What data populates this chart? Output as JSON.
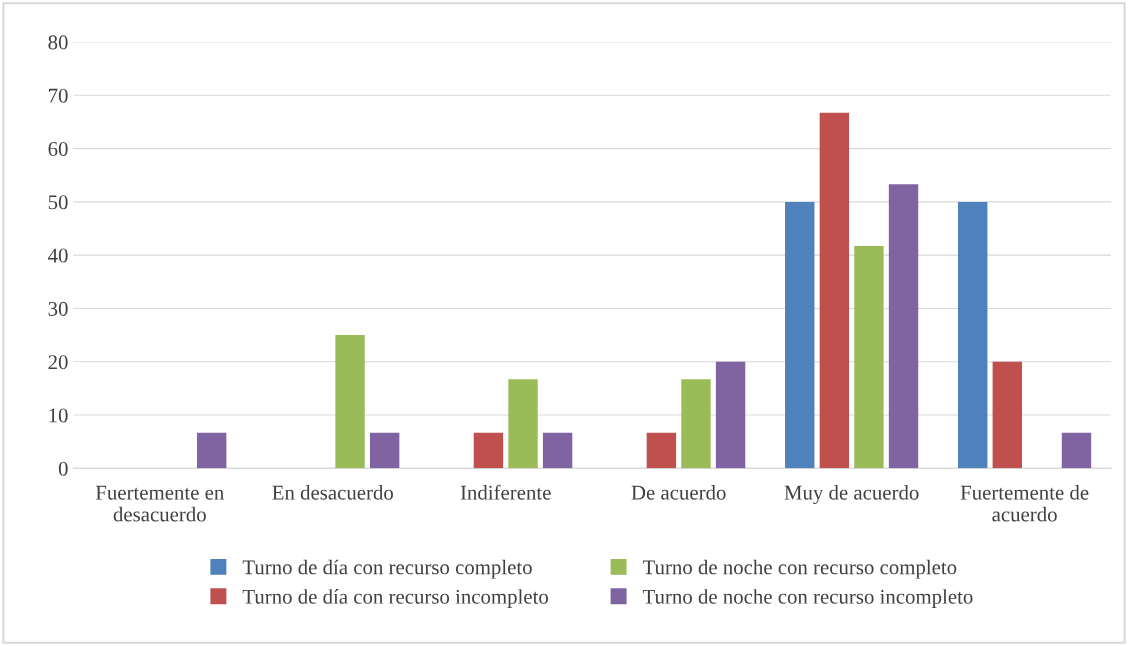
{
  "chart_data": {
    "type": "bar",
    "categories": [
      "Fuertemente en\ndesacuerdo",
      "En desacuerdo",
      "Indiferente",
      "De acuerdo",
      "Muy de acuerdo",
      "Fuertemente de\nacuerdo"
    ],
    "series": [
      {
        "name": "Turno de día con recurso completo",
        "color": "#4f81bd",
        "values": [
          0,
          0,
          0,
          0,
          50,
          50
        ]
      },
      {
        "name": "Turno de día con recurso incompleto",
        "color": "#c0504d",
        "values": [
          0,
          0,
          6.7,
          6.7,
          66.7,
          20
        ]
      },
      {
        "name": "Turno de noche con recurso completo",
        "color": "#9bbb59",
        "values": [
          0,
          25,
          16.7,
          16.7,
          41.7,
          0
        ]
      },
      {
        "name": "Turno de noche con recurso incompleto",
        "color": "#8064a2",
        "values": [
          6.7,
          6.7,
          6.7,
          20,
          53.3,
          6.7
        ]
      }
    ],
    "ylim": [
      0,
      80
    ],
    "yticks": [
      0,
      10,
      20,
      30,
      40,
      50,
      60,
      70,
      80
    ],
    "grid": "y",
    "legend": "bottom"
  }
}
